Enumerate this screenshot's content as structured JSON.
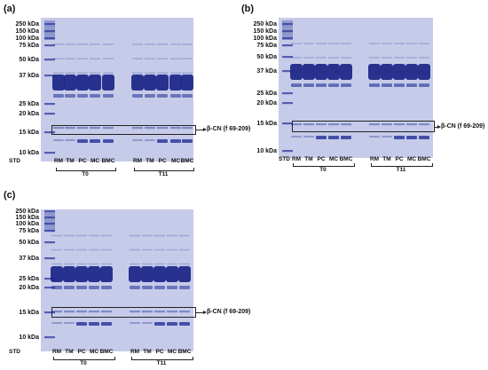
{
  "panels": [
    {
      "letter": "(a)",
      "markers": [
        "250 kDa",
        "150 kDa",
        "100 kDa",
        "75 kDa",
        "50 kDa",
        "37 kDa",
        "25 kDa",
        "20 kDa",
        "15 kDa",
        "10 kDa"
      ],
      "std_label": "STD",
      "lanes": [
        "RM",
        "TM",
        "PC",
        "MC",
        "BMC",
        "RM",
        "TM",
        "PC",
        "MC",
        "BMC"
      ],
      "groups": [
        "T0",
        "T11"
      ],
      "callout": "β-CN (f 69-209)"
    },
    {
      "letter": "(b)",
      "markers": [
        "250 kDa",
        "150 kDa",
        "100 kDa",
        "75 kDa",
        "50 kDa",
        "37 kDa",
        "25 kDa",
        "20 kDa",
        "15 kDa",
        "10 kDa"
      ],
      "std_label": "STD",
      "lanes": [
        "RM",
        "TM",
        "PC",
        "MC",
        "BMC",
        "RM",
        "TM",
        "PC",
        "MC",
        "BMC"
      ],
      "groups": [
        "T0",
        "T11"
      ],
      "callout": "β-CN (f 69-209)"
    },
    {
      "letter": "(c)",
      "markers": [
        "250 kDa",
        "150 kDa",
        "100 kDa",
        "75 kDa",
        "50 kDa",
        "37 kDa",
        "25 kDa",
        "20 kDa",
        "15 kDa",
        "10 kDa"
      ],
      "std_label": "STD",
      "lanes": [
        "RM",
        "TM",
        "PC",
        "MC",
        "BMC",
        "RM",
        "TM",
        "PC",
        "MC",
        "BMC"
      ],
      "groups": [
        "T0",
        "T11"
      ],
      "callout": "β-CN (f 69-209)"
    }
  ],
  "colors": {
    "gel_bg": "#c6cbe9",
    "band": "#2b3a9c",
    "band_dark": "#1a2585"
  }
}
